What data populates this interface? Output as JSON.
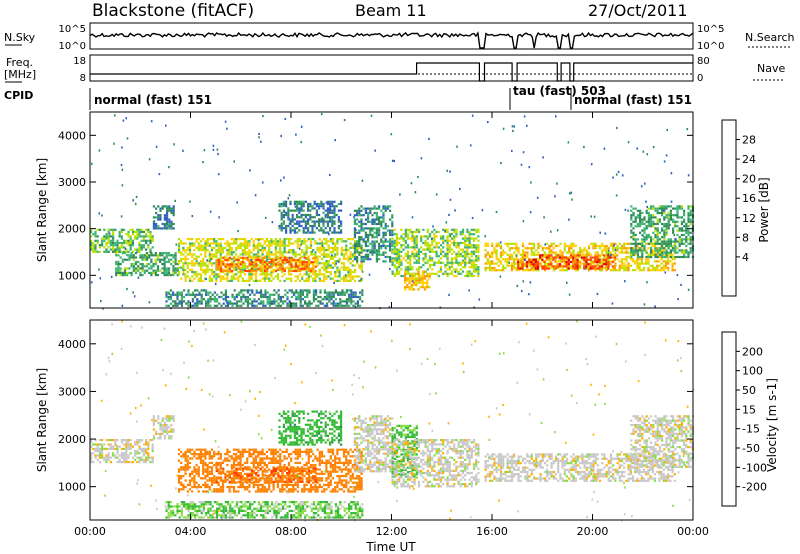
{
  "header": {
    "station": "Blackstone (fitACF)",
    "beam": "Beam 11",
    "date": "27/Oct/2011"
  },
  "top_panels": {
    "nsky_label": "N.Sky",
    "nsky_ticks": [
      "10^5",
      "10^0"
    ],
    "nsearch_label": "N.Search",
    "freq_label": "Freq.",
    "freq_unit": "[MHz]",
    "freq_ticks": [
      "18",
      "8"
    ],
    "nave_label": "Nave",
    "nave_ticks": [
      "80",
      "0"
    ],
    "cpid_label": "CPID",
    "cpid_segments": [
      {
        "label": "normal (fast) 151",
        "start_hour": 0
      },
      {
        "label": "tau (fast) 503",
        "start_hour": 16.7
      },
      {
        "label": "normal (fast) 151",
        "start_hour": 19.2
      }
    ]
  },
  "legends": {
    "power": {
      "title": "Power [dB]",
      "ticks": [
        "28",
        "24",
        "20",
        "16",
        "12",
        "8",
        "4"
      ],
      "colors": [
        "#e00000",
        "#ff4500",
        "#ff9900",
        "#ffd000",
        "#b9e000",
        "#3cb371",
        "#2e8b57",
        "#3060c0",
        "#0000ff"
      ]
    },
    "velocity": {
      "title": "Velocity [m s-1]",
      "ticks": [
        "200",
        "100",
        "50",
        "15",
        "-15",
        "-50",
        "-100",
        "-200"
      ],
      "colors": [
        "#1f3fbf",
        "#2e8b57",
        "#33bb33",
        "#88dd44",
        "#c8c8c8",
        "#ffb000",
        "#ff8000",
        "#ff4000",
        "#e00000"
      ]
    }
  },
  "chart_data": [
    {
      "type": "heatmap",
      "title": "Power",
      "xlabel": "Time UT",
      "ylabel": "Slant Range [km]",
      "x_ticks": [
        "00:00",
        "04:00",
        "08:00",
        "12:00",
        "16:00",
        "20:00",
        "00:00"
      ],
      "y_ticks": [
        1000,
        2000,
        3000,
        4000
      ],
      "xlim_hours": [
        0,
        24
      ],
      "ylim_km": [
        300,
        4500
      ],
      "scale_db": [
        0,
        30
      ],
      "echo_bands": [
        {
          "start_hour": 0.0,
          "end_hour": 2.5,
          "range_from_km": 1500,
          "range_to_km": 2000,
          "power_db": 12
        },
        {
          "start_hour": 2.5,
          "end_hour": 3.3,
          "range_from_km": 2000,
          "range_to_km": 2500,
          "power_db": 6
        },
        {
          "start_hour": 1.0,
          "end_hour": 3.5,
          "range_from_km": 1000,
          "range_to_km": 1500,
          "power_db": 10
        },
        {
          "start_hour": 3.5,
          "end_hour": 10.8,
          "range_from_km": 900,
          "range_to_km": 1800,
          "power_db": 16
        },
        {
          "start_hour": 5.0,
          "end_hour": 9.0,
          "range_from_km": 1100,
          "range_to_km": 1400,
          "power_db": 24
        },
        {
          "start_hour": 7.5,
          "end_hour": 10.0,
          "range_from_km": 1900,
          "range_to_km": 2600,
          "power_db": 6
        },
        {
          "start_hour": 10.5,
          "end_hour": 12.0,
          "range_from_km": 1300,
          "range_to_km": 2500,
          "power_db": 8
        },
        {
          "start_hour": 12.0,
          "end_hour": 15.5,
          "range_from_km": 1000,
          "range_to_km": 2000,
          "power_db": 14
        },
        {
          "start_hour": 12.5,
          "end_hour": 13.5,
          "range_from_km": 700,
          "range_to_km": 1100,
          "power_db": 20
        },
        {
          "start_hour": 15.7,
          "end_hour": 23.3,
          "range_from_km": 1100,
          "range_to_km": 1700,
          "power_db": 18
        },
        {
          "start_hour": 17.0,
          "end_hour": 21.0,
          "range_from_km": 1150,
          "range_to_km": 1450,
          "power_db": 26
        },
        {
          "start_hour": 21.5,
          "end_hour": 24.0,
          "range_from_km": 1400,
          "range_to_km": 2500,
          "power_db": 10
        },
        {
          "start_hour": 3.0,
          "end_hour": 10.8,
          "range_from_km": 350,
          "range_to_km": 700,
          "power_db": 8
        }
      ]
    },
    {
      "type": "heatmap",
      "title": "Velocity",
      "xlabel": "Time UT",
      "ylabel": "Slant Range [km]",
      "x_ticks": [
        "00:00",
        "04:00",
        "08:00",
        "12:00",
        "16:00",
        "20:00",
        "00:00"
      ],
      "y_ticks": [
        1000,
        2000,
        3000,
        4000
      ],
      "xlim_hours": [
        0,
        24
      ],
      "ylim_km": [
        300,
        4500
      ],
      "scale_ms": [
        -250,
        250
      ],
      "echo_bands": [
        {
          "start_hour": 0.0,
          "end_hour": 2.5,
          "range_from_km": 1500,
          "range_to_km": 2000,
          "velocity_ms": 0
        },
        {
          "start_hour": 2.5,
          "end_hour": 3.3,
          "range_from_km": 2000,
          "range_to_km": 2500,
          "velocity_ms": 0
        },
        {
          "start_hour": 3.5,
          "end_hour": 10.8,
          "range_from_km": 900,
          "range_to_km": 1800,
          "velocity_ms": -80
        },
        {
          "start_hour": 5.0,
          "end_hour": 9.0,
          "range_from_km": 1100,
          "range_to_km": 1400,
          "velocity_ms": -90
        },
        {
          "start_hour": 7.5,
          "end_hour": 10.0,
          "range_from_km": 1900,
          "range_to_km": 2600,
          "velocity_ms": 60
        },
        {
          "start_hour": 10.5,
          "end_hour": 12.0,
          "range_from_km": 1300,
          "range_to_km": 2500,
          "velocity_ms": 0
        },
        {
          "start_hour": 12.0,
          "end_hour": 13.0,
          "range_from_km": 1200,
          "range_to_km": 2300,
          "velocity_ms": 40
        },
        {
          "start_hour": 12.0,
          "end_hour": 15.5,
          "range_from_km": 1000,
          "range_to_km": 2000,
          "velocity_ms": 0
        },
        {
          "start_hour": 15.7,
          "end_hour": 23.3,
          "range_from_km": 1100,
          "range_to_km": 1700,
          "velocity_ms": 0
        },
        {
          "start_hour": 21.5,
          "end_hour": 24.0,
          "range_from_km": 1400,
          "range_to_km": 2500,
          "velocity_ms": 0
        },
        {
          "start_hour": 3.0,
          "end_hour": 10.8,
          "range_from_km": 350,
          "range_to_km": 700,
          "velocity_ms": 30
        }
      ]
    }
  ]
}
